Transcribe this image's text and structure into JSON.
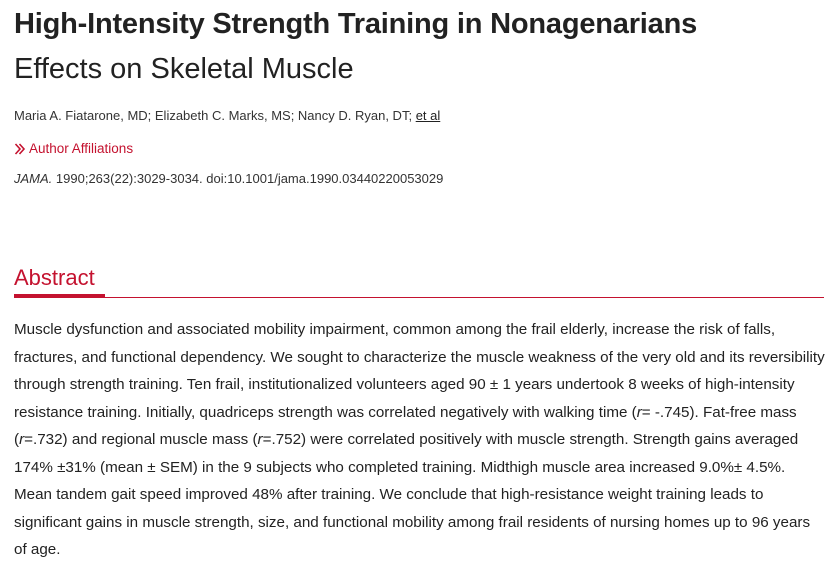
{
  "article": {
    "title": "High-Intensity Strength Training in Nonagenarians",
    "subtitle": "Effects on Skeletal Muscle",
    "authors_text": "Maria A. Fiatarone, MD; Elizabeth C. Marks, MS; Nancy D. Ryan, DT; ",
    "et_al": "et al",
    "affiliations_link": "Author Affiliations",
    "citation_journal": "JAMA.",
    "citation_rest": " 1990;263(22):3029-3034. doi:10.1001/jama.1990.03440220053029"
  },
  "abstract": {
    "heading": "Abstract",
    "p1": "Muscle dysfunction and associated mobility impairment, common among the frail elderly, increase the risk of falls, fractures, and functional dependency. We sought to characterize the muscle weakness of the very old and its reversibility through strength training. Ten frail, institutionalized volunteers aged 90 ± 1 years undertook 8 weeks of high-intensity resistance training. Initially, quadriceps strength was correlated negatively with walking time (",
    "r1_var": "r",
    "r1_val": "= -.745). Fat-free mass (",
    "r2_var": "r",
    "r2_val": "=.732) and regional muscle mass (",
    "r3_var": "r",
    "r3_val": "=.752) were correlated positively with muscle strength. Strength gains averaged 174% ±31% (mean ± SEM) in the 9 subjects who completed training. Midthigh muscle area increased 9.0%± 4.5%. Mean tandem gait speed improved 48% after training. We conclude that high-resistance weight training leads to significant gains in muscle strength, size, and functional mobility among frail residents of nursing homes up to 96 years of age."
  },
  "colors": {
    "accent": "#c4122f",
    "text": "#222222"
  },
  "icons": {
    "affiliations": "chevron-right-double-icon"
  }
}
